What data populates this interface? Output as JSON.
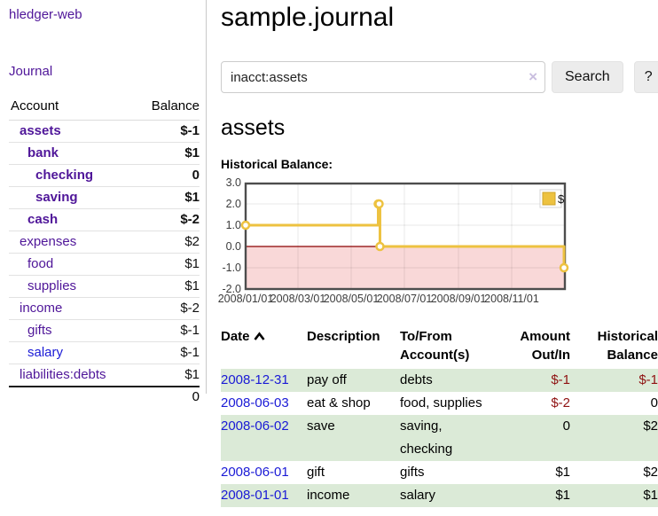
{
  "sidebar": {
    "app_title": "hledger-web",
    "nav_journal": "Journal",
    "accounts_header": {
      "account": "Account",
      "balance": "Balance"
    },
    "accounts": [
      {
        "name": "assets",
        "depth": 1,
        "balance": "$-1",
        "bold": true,
        "balance_color": "negative"
      },
      {
        "name": "bank",
        "depth": 2,
        "balance": "$1",
        "bold": true
      },
      {
        "name": "checking",
        "depth": 3,
        "balance": "0",
        "bold": true
      },
      {
        "name": "saving",
        "depth": 3,
        "balance": "$1",
        "bold": true
      },
      {
        "name": "cash",
        "depth": 2,
        "balance": "$-2",
        "bold": true,
        "balance_color": "negative"
      },
      {
        "name": "expenses",
        "depth": 1,
        "balance": "$2"
      },
      {
        "name": "food",
        "depth": 2,
        "balance": "$1"
      },
      {
        "name": "supplies",
        "depth": 2,
        "balance": "$1"
      },
      {
        "name": "income",
        "depth": 1,
        "balance": "$-2",
        "balance_color": "negative-light"
      },
      {
        "name": "gifts",
        "depth": 2,
        "balance": "$-1",
        "balance_color": "negative-light"
      },
      {
        "name": "salary",
        "depth": 2,
        "balance": "$-1",
        "balance_color": "negative-light",
        "link_color": "blue"
      },
      {
        "name": "liabilities:debts",
        "depth": 1,
        "balance": "$1"
      }
    ],
    "total": "0"
  },
  "main": {
    "title": "sample.journal",
    "search": {
      "query": "inacct:assets",
      "button_label": "Search",
      "help_label": "?",
      "clear_icon": "×"
    },
    "account_heading": "assets",
    "chart_title": "Historical Balance:"
  },
  "chart_data": {
    "type": "line",
    "title": "Historical Balance:",
    "step": true,
    "x_type": "date",
    "series": [
      {
        "name": "$",
        "color": "#edc240",
        "points": [
          [
            "2008-01-01",
            1
          ],
          [
            "2008-06-01",
            2
          ],
          [
            "2008-06-02",
            2
          ],
          [
            "2008-06-03",
            0
          ],
          [
            "2008-12-31",
            -1
          ]
        ]
      }
    ],
    "x_tick_labels": [
      "2008/01/01",
      "2008/03/01",
      "2008/05/01",
      "2008/07/01",
      "2008/09/01",
      "2008/11/01"
    ],
    "y_ticks": [
      "3.0",
      "2.0",
      "1.0",
      "0.0",
      "-1.0",
      "-2.0"
    ],
    "ylim": [
      -2,
      3
    ],
    "xlim_days": [
      0,
      366
    ],
    "grid": true,
    "legend": "$",
    "legend_position": "top-right",
    "negative_region_color": "#f9d8d8",
    "zero_line_color": "#8b0000",
    "border_color": "#4d4d4d"
  },
  "register": {
    "headers": [
      "Date",
      "Description",
      "To/From Account(s)",
      "Amount Out/In",
      "Historical Balance"
    ],
    "rows": [
      {
        "date": "2008-12-31",
        "description": "pay off",
        "accounts": "debts",
        "amount": "$-1",
        "amount_neg": true,
        "balance": "$-1",
        "balance_neg": true,
        "stripe": true
      },
      {
        "date": "2008-06-03",
        "description": "eat & shop",
        "accounts": "food, supplies",
        "amount": "$-2",
        "amount_neg": true,
        "balance": "0",
        "balance_neg": false,
        "stripe": false
      },
      {
        "date": "2008-06-02",
        "description": "save",
        "accounts": "saving, checking",
        "amount": "0",
        "amount_neg": false,
        "balance": "$2",
        "balance_neg": false,
        "stripe": true
      },
      {
        "date": "2008-06-01",
        "description": "gift",
        "accounts": "gifts",
        "amount": "$1",
        "amount_neg": false,
        "balance": "$2",
        "balance_neg": false,
        "stripe": false
      },
      {
        "date": "2008-01-01",
        "description": "income",
        "accounts": "salary",
        "amount": "$1",
        "amount_neg": false,
        "balance": "$1",
        "balance_neg": false,
        "stripe": true
      }
    ]
  }
}
